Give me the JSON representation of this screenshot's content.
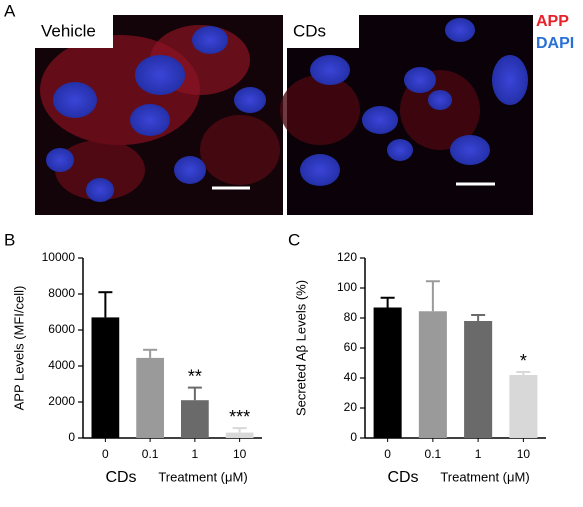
{
  "figure": {
    "panel_labels": [
      "A",
      "B",
      "C"
    ],
    "image_labels": [
      "Vehicle",
      "CDs"
    ],
    "legend": [
      {
        "name": "APP",
        "color": "#e8202a"
      },
      {
        "name": "DAPI",
        "color": "#2a6fd6"
      }
    ]
  },
  "chart_data": [
    {
      "type": "bar",
      "ylabel": "APP Levels (MFI/cell)",
      "x_group_label": "CDs",
      "xlabel": "Treatment (μM)",
      "categories": [
        "0",
        "0.1",
        "1",
        "10"
      ],
      "values": [
        6700,
        4450,
        2100,
        300
      ],
      "errors": [
        1400,
        450,
        700,
        250
      ],
      "colors": [
        "#000000",
        "#9a9a9a",
        "#6a6a6a",
        "#d8d8d8"
      ],
      "annotations": [
        null,
        null,
        "**",
        "***"
      ],
      "ylim": [
        0,
        10000
      ],
      "yticks": [
        0,
        2000,
        4000,
        6000,
        8000,
        10000
      ]
    },
    {
      "type": "bar",
      "ylabel": "Secreted Aβ Levels (%)",
      "x_group_label": "CDs",
      "xlabel": "Treatment (μM)",
      "categories": [
        "0",
        "0.1",
        "1",
        "10"
      ],
      "values": [
        87,
        84.5,
        78,
        42
      ],
      "errors": [
        6.5,
        20,
        4,
        2
      ],
      "colors": [
        "#000000",
        "#9a9a9a",
        "#6a6a6a",
        "#d8d8d8"
      ],
      "annotations": [
        null,
        null,
        null,
        "*"
      ],
      "ylim": [
        0,
        120
      ],
      "yticks": [
        0,
        20,
        40,
        60,
        80,
        100,
        120
      ]
    }
  ]
}
